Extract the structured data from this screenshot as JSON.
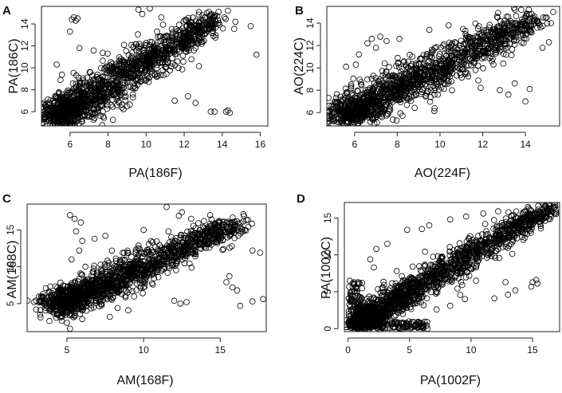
{
  "figure": {
    "point_color": "#000000",
    "background": "#ffffff"
  },
  "chart_data": [
    {
      "panel": "A",
      "type": "scatter",
      "xlabel": "PA(186F)",
      "ylabel": "PA(186C)",
      "xlim": [
        4.5,
        16.4
      ],
      "ylim": [
        4.7,
        15.6
      ],
      "xticks": [
        6,
        8,
        10,
        12,
        14,
        16
      ],
      "yticks": [
        6,
        8,
        10,
        12,
        14
      ],
      "trend": {
        "x0": 5.3,
        "y0": 5.5,
        "x1": 13.6,
        "y1": 14.4
      },
      "spread": 1.1,
      "outliers": [
        [
          6.2,
          14.6
        ],
        [
          6.4,
          14.5
        ],
        [
          6.3,
          14.3
        ],
        [
          6.1,
          14.4
        ],
        [
          14.2,
          6.0
        ],
        [
          14.4,
          5.9
        ],
        [
          14.3,
          6.1
        ],
        [
          13.6,
          6.0
        ],
        [
          13.4,
          6.0
        ],
        [
          15.8,
          11.2
        ],
        [
          15.5,
          13.8
        ],
        [
          13.3,
          15.1
        ],
        [
          9.6,
          15.3
        ],
        [
          10.8,
          14.6
        ],
        [
          12.2,
          7.4
        ],
        [
          12.6,
          6.8
        ],
        [
          11.5,
          7.0
        ],
        [
          6.0,
          13.3
        ],
        [
          5.3,
          10.3
        ],
        [
          5.5,
          8.9
        ],
        [
          6.5,
          11.8
        ],
        [
          14.7,
          14.2
        ],
        [
          14.3,
          15.2
        ],
        [
          9.8,
          14.9
        ],
        [
          10.2,
          15.4
        ]
      ]
    },
    {
      "panel": "B",
      "type": "scatter",
      "xlabel": "AO(224F)",
      "ylabel": "AO(224C)",
      "xlim": [
        4.7,
        15.6
      ],
      "ylim": [
        4.8,
        15.5
      ],
      "xticks": [
        6,
        8,
        10,
        12,
        14
      ],
      "yticks": [
        6,
        8,
        10,
        12,
        14
      ],
      "trend": {
        "x0": 5.5,
        "y0": 5.7,
        "x1": 14.3,
        "y1": 14.3
      },
      "spread": 1.1,
      "outliers": [
        [
          6.8,
          12.6
        ],
        [
          7.2,
          12.8
        ],
        [
          7.5,
          12.4
        ],
        [
          6.6,
          12.2
        ],
        [
          8.1,
          12.6
        ],
        [
          7.0,
          11.8
        ],
        [
          15.0,
          14.5
        ],
        [
          15.2,
          14.0
        ],
        [
          15.3,
          15.0
        ],
        [
          14.0,
          7.0
        ],
        [
          14.2,
          8.1
        ],
        [
          13.5,
          8.6
        ],
        [
          13.2,
          7.6
        ],
        [
          12.8,
          8.0
        ],
        [
          11.9,
          8.2
        ],
        [
          12.5,
          10.3
        ],
        [
          11.2,
          13.0
        ],
        [
          12.7,
          14.5
        ],
        [
          13.8,
          15.2
        ],
        [
          14.8,
          11.8
        ],
        [
          15.1,
          12.3
        ],
        [
          9.5,
          13.4
        ],
        [
          10.4,
          13.8
        ],
        [
          6.2,
          11.2
        ],
        [
          5.6,
          10.1
        ]
      ]
    },
    {
      "panel": "C",
      "type": "scatter",
      "xlabel": "AM(168F)",
      "ylabel": "AM(168C)",
      "xlim": [
        2.4,
        18.0
      ],
      "ylim": [
        1.2,
        18.5
      ],
      "xticks": [
        5,
        10,
        15
      ],
      "yticks": [
        5,
        10,
        15
      ],
      "trend": {
        "x0": 4.5,
        "y0": 4.8,
        "x1": 16.0,
        "y1": 15.9
      },
      "spread": 1.4,
      "outliers": [
        [
          5.2,
          17.0
        ],
        [
          5.5,
          16.5
        ],
        [
          5.9,
          16.0
        ],
        [
          5.6,
          14.8
        ],
        [
          6.0,
          13.5
        ],
        [
          5.8,
          12.2
        ],
        [
          5.3,
          11.0
        ],
        [
          6.2,
          10.0
        ],
        [
          11.5,
          18.1
        ],
        [
          12.3,
          16.9
        ],
        [
          12.5,
          17.4
        ],
        [
          13.1,
          16.5
        ],
        [
          14.0,
          14.2
        ],
        [
          14.8,
          13.2
        ],
        [
          15.2,
          12.4
        ],
        [
          15.6,
          8.7
        ],
        [
          15.4,
          7.9
        ],
        [
          15.8,
          7.2
        ],
        [
          16.1,
          6.8
        ],
        [
          16.6,
          15.0
        ],
        [
          17.1,
          12.2
        ],
        [
          17.6,
          11.9
        ],
        [
          17.8,
          5.6
        ],
        [
          17.1,
          5.3
        ],
        [
          16.3,
          4.7
        ],
        [
          12.0,
          5.4
        ],
        [
          12.4,
          5.0
        ],
        [
          12.8,
          5.2
        ],
        [
          3.2,
          5.3
        ],
        [
          3.9,
          5.0
        ],
        [
          5.0,
          2.4
        ],
        [
          5.2,
          1.6
        ],
        [
          6.0,
          2.9
        ],
        [
          7.8,
          3.2
        ],
        [
          9.0,
          4.1
        ],
        [
          8.3,
          4.4
        ],
        [
          10.0,
          15.0
        ],
        [
          6.8,
          13.8
        ],
        [
          7.5,
          14.2
        ]
      ]
    },
    {
      "panel": "D",
      "type": "scatter",
      "xlabel": "PA(1002F)",
      "ylabel": "PA(1002C)",
      "xlim": [
        -0.3,
        17.2
      ],
      "ylim": [
        -0.4,
        17.1
      ],
      "xticks": [
        0,
        5,
        10,
        15
      ],
      "yticks": [
        0,
        5,
        10,
        15
      ],
      "trend": {
        "x0": 1.0,
        "y0": 1.0,
        "x1": 16.4,
        "y1": 16.5
      },
      "spread": 1.3,
      "outliers": [
        [
          2.3,
          10.8
        ],
        [
          1.8,
          9.4
        ],
        [
          2.1,
          8.3
        ],
        [
          3.2,
          11.5
        ],
        [
          4.8,
          13.4
        ],
        [
          6.6,
          14.0
        ],
        [
          6.0,
          13.5
        ],
        [
          8.3,
          14.8
        ],
        [
          9.6,
          15.2
        ],
        [
          11.0,
          15.6
        ],
        [
          12.2,
          15.9
        ],
        [
          12.8,
          6.3
        ],
        [
          11.9,
          4.1
        ],
        [
          13.0,
          4.6
        ],
        [
          13.6,
          5.2
        ],
        [
          15.0,
          6.3
        ],
        [
          15.3,
          6.6
        ],
        [
          15.4,
          6.1
        ],
        [
          14.9,
          5.7
        ],
        [
          16.5,
          15.2
        ],
        [
          17.0,
          16.8
        ],
        [
          7.2,
          2.6
        ],
        [
          8.3,
          3.1
        ],
        [
          9.5,
          4.0
        ],
        [
          10.4,
          6.5
        ]
      ]
    }
  ]
}
